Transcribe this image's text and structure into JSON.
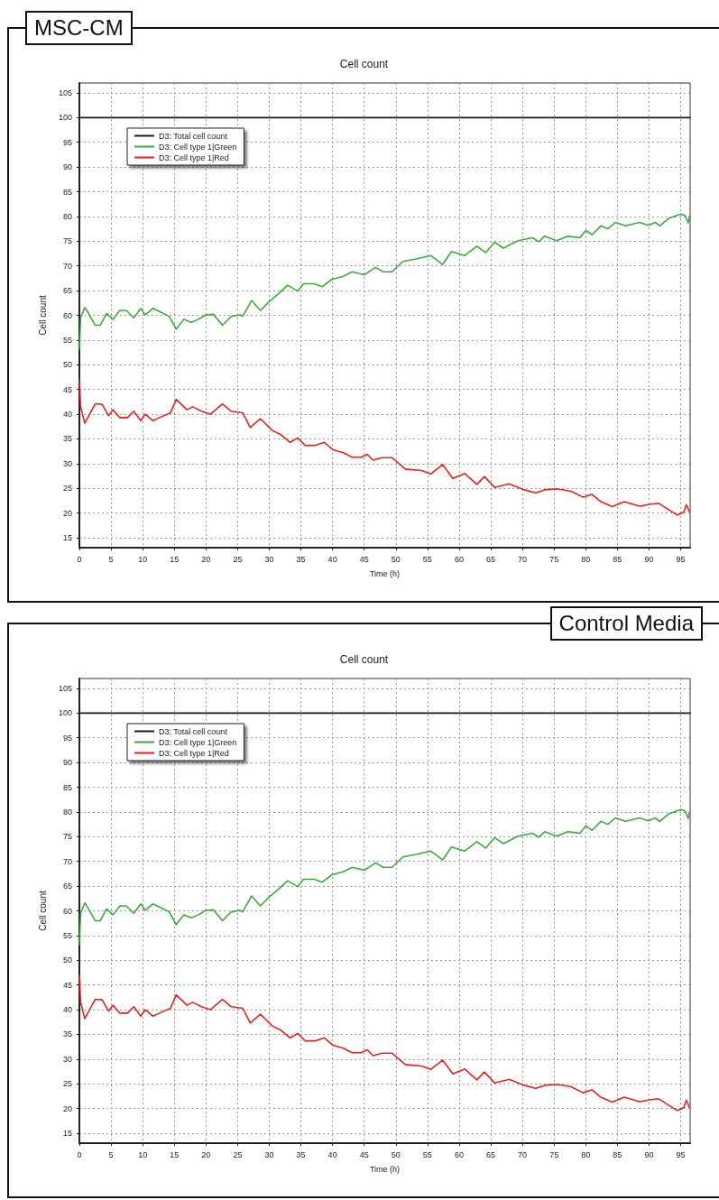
{
  "chart_data": [
    {
      "type": "line",
      "title": "MSC-CM",
      "subtitle": "Cell count",
      "xlabel": "Time (h)",
      "ylabel": "Cell count",
      "xlim": [
        0,
        96.5
      ],
      "xticks": [
        0,
        5,
        10,
        15,
        20,
        25,
        30,
        35,
        40,
        45,
        50,
        55,
        60,
        65,
        70,
        75,
        80,
        85,
        90,
        95
      ],
      "ylim": [
        13,
        107
      ],
      "yticks": [
        15,
        20,
        25,
        30,
        35,
        40,
        45,
        50,
        55,
        60,
        65,
        70,
        75,
        80,
        85,
        90,
        95,
        100,
        105
      ],
      "grid": true,
      "legend": "top left",
      "marker": "none",
      "line_style": "solid",
      "series": [
        {
          "name": "D3: Total cell count",
          "color": "#1a1a1a",
          "x": [
            0,
            96.5
          ],
          "values": [
            100,
            100
          ]
        },
        {
          "name": "D3: Cell type 1|Green",
          "color": "#3daa3d",
          "x": [
            0,
            0.2,
            0.85,
            1.3,
            2.5,
            3.3,
            4.3,
            5.3,
            6.4,
            7.4,
            8.6,
            9.7,
            10.4,
            11.6,
            12.8,
            14.2,
            15.3,
            16.5,
            17.7,
            18.8,
            20,
            21.2,
            22.6,
            24,
            25.4,
            25.8,
            27.2,
            28.6,
            30,
            31.4,
            32.9,
            34.5,
            35.4,
            37.1,
            38.4,
            39.9,
            41.7,
            43.1,
            45,
            46.8,
            48,
            49.4,
            51.1,
            53.2,
            55.5,
            57.4,
            58.8,
            60.9,
            62.8,
            64.2,
            65.6,
            67,
            69.3,
            71.6,
            72.6,
            73.5,
            75.4,
            77.2,
            79.1,
            80,
            81,
            82.4,
            83.5,
            84.7,
            86.3,
            88.5,
            89.9,
            91,
            91.7,
            93.1,
            95,
            95.7,
            96.2,
            96.4
          ],
          "values": [
            53.2,
            59.5,
            61.6,
            60.7,
            58,
            58,
            60.4,
            59.2,
            61,
            61,
            59.5,
            61.4,
            60.1,
            61.4,
            60.7,
            59.8,
            57.2,
            59.2,
            58.6,
            59.2,
            60.1,
            60.2,
            58,
            59.8,
            60.1,
            59.8,
            63,
            61,
            62.8,
            64.3,
            66.1,
            64.9,
            66.4,
            66.4,
            65.8,
            67.3,
            67.9,
            68.8,
            68.2,
            69.7,
            68.8,
            68.8,
            70.9,
            71.4,
            72.1,
            70.3,
            72.9,
            72.1,
            74,
            72.7,
            74.8,
            73.6,
            75.1,
            75.7,
            74.9,
            76,
            75.1,
            76,
            75.7,
            77.2,
            76.3,
            78.1,
            77.5,
            78.8,
            78.1,
            78.8,
            78.2,
            78.8,
            78.1,
            79.6,
            80.5,
            80.2,
            78.7,
            80
          ]
        },
        {
          "name": "D3: Cell type 1|Red",
          "color": "#e8211f",
          "x": [
            0,
            0.2,
            0.85,
            1.5,
            2.5,
            3.6,
            4.6,
            5.3,
            6.4,
            7.6,
            8.6,
            9.7,
            10.4,
            11.6,
            12.8,
            14.4,
            15.3,
            17,
            17.9,
            19.3,
            20.7,
            22.6,
            24,
            25.8,
            27,
            28.6,
            30.5,
            31.9,
            33.3,
            34.5,
            35.7,
            37.3,
            38.7,
            40.1,
            41.7,
            43.1,
            44.5,
            45.5,
            46.4,
            47.8,
            49.4,
            51.5,
            54.1,
            55.5,
            57.4,
            59,
            60.9,
            62.8,
            64,
            65.6,
            67.9,
            70.3,
            72.1,
            73.5,
            75.4,
            77.7,
            79.6,
            81,
            82.4,
            84.2,
            86.1,
            88.5,
            90.3,
            91.5,
            93.1,
            94.5,
            95.5,
            95.9,
            96.4
          ],
          "values": [
            46.9,
            41.5,
            38.2,
            39.7,
            42.1,
            42,
            39.7,
            40.9,
            39.3,
            39.3,
            40.6,
            38.7,
            40,
            38.7,
            39.4,
            40.3,
            43,
            40.9,
            41.5,
            40.6,
            40,
            42.1,
            40.6,
            40.3,
            37.3,
            39.1,
            36.7,
            35.8,
            34.3,
            35.2,
            33.7,
            33.7,
            34.3,
            32.8,
            32.2,
            31.3,
            31.3,
            31.9,
            30.7,
            31.2,
            31.2,
            28.9,
            28.6,
            27.9,
            29.8,
            27,
            28,
            25.8,
            27.4,
            25.2,
            25.9,
            24.7,
            24.1,
            24.7,
            24.9,
            24.4,
            23.2,
            23.8,
            22.3,
            21.3,
            22.3,
            21.4,
            21.8,
            22,
            20.7,
            19.6,
            20.2,
            21.7,
            20.2
          ]
        }
      ]
    },
    {
      "type": "line",
      "title": "Control Media",
      "subtitle": "Cell count",
      "xlabel": "Time (h)",
      "ylabel": "Cell count",
      "xlim": [
        0,
        96.5
      ],
      "xticks": [
        0,
        5,
        10,
        15,
        20,
        25,
        30,
        35,
        40,
        45,
        50,
        55,
        60,
        65,
        70,
        75,
        80,
        85,
        90,
        95
      ],
      "ylim": [
        13,
        107
      ],
      "yticks": [
        15,
        20,
        25,
        30,
        35,
        40,
        45,
        50,
        55,
        60,
        65,
        70,
        75,
        80,
        85,
        90,
        95,
        100,
        105
      ],
      "grid": true,
      "legend": "top left",
      "marker": "none",
      "line_style": "solid",
      "series": [
        {
          "name": "D3: Total cell count",
          "color": "#1a1a1a",
          "x": [
            0,
            96.5
          ],
          "values": [
            100,
            100
          ]
        },
        {
          "name": "D3: Cell type 1|Green",
          "color": "#3daa3d",
          "x": [
            0,
            0.2,
            0.85,
            1.3,
            2.5,
            3.3,
            4.3,
            5.3,
            6.4,
            7.4,
            8.6,
            9.7,
            10.4,
            11.6,
            12.8,
            14.2,
            15.3,
            16.5,
            17.7,
            18.8,
            20,
            21.2,
            22.6,
            24,
            25.4,
            25.8,
            27.2,
            28.6,
            30,
            31.4,
            32.9,
            34.5,
            35.4,
            37.1,
            38.4,
            39.9,
            41.7,
            43.1,
            45,
            46.8,
            48,
            49.4,
            51.1,
            53.2,
            55.5,
            57.4,
            58.8,
            60.9,
            62.8,
            64.2,
            65.6,
            67,
            69.3,
            71.6,
            72.6,
            73.5,
            75.4,
            77.2,
            79.1,
            80,
            81,
            82.4,
            83.5,
            84.7,
            86.3,
            88.5,
            89.9,
            91,
            91.7,
            93.1,
            95,
            95.7,
            96.2,
            96.4
          ],
          "values": [
            53.2,
            59.5,
            61.6,
            60.7,
            58,
            58,
            60.4,
            59.2,
            61,
            61,
            59.5,
            61.4,
            60.1,
            61.4,
            60.7,
            59.8,
            57.2,
            59.2,
            58.6,
            59.2,
            60.1,
            60.2,
            58,
            59.8,
            60.1,
            59.8,
            63,
            61,
            62.8,
            64.3,
            66.1,
            64.9,
            66.4,
            66.4,
            65.8,
            67.3,
            67.9,
            68.8,
            68.2,
            69.7,
            68.8,
            68.8,
            70.9,
            71.4,
            72.1,
            70.3,
            72.9,
            72.1,
            74,
            72.7,
            74.8,
            73.6,
            75.1,
            75.7,
            74.9,
            76,
            75.1,
            76,
            75.7,
            77.2,
            76.3,
            78.1,
            77.5,
            78.8,
            78.1,
            78.8,
            78.2,
            78.8,
            78.1,
            79.6,
            80.5,
            80.2,
            78.7,
            80
          ]
        },
        {
          "name": "D3: Cell type 1|Red",
          "color": "#e8211f",
          "x": [
            0,
            0.2,
            0.85,
            1.5,
            2.5,
            3.6,
            4.6,
            5.3,
            6.4,
            7.6,
            8.6,
            9.7,
            10.4,
            11.6,
            12.8,
            14.4,
            15.3,
            17,
            17.9,
            19.3,
            20.7,
            22.6,
            24,
            25.8,
            27,
            28.6,
            30.5,
            31.9,
            33.3,
            34.5,
            35.7,
            37.3,
            38.7,
            40.1,
            41.7,
            43.1,
            44.5,
            45.5,
            46.4,
            47.8,
            49.4,
            51.5,
            54.1,
            55.5,
            57.4,
            59,
            60.9,
            62.8,
            64,
            65.6,
            67.9,
            70.3,
            72.1,
            73.5,
            75.4,
            77.7,
            79.6,
            81,
            82.4,
            84.2,
            86.1,
            88.5,
            90.3,
            91.5,
            93.1,
            94.5,
            95.5,
            95.9,
            96.4
          ],
          "values": [
            46.9,
            41.5,
            38.2,
            39.7,
            42.1,
            42,
            39.7,
            40.9,
            39.3,
            39.3,
            40.6,
            38.7,
            40,
            38.7,
            39.4,
            40.3,
            43,
            40.9,
            41.5,
            40.6,
            40,
            42.1,
            40.6,
            40.3,
            37.3,
            39.1,
            36.7,
            35.8,
            34.3,
            35.2,
            33.7,
            33.7,
            34.3,
            32.8,
            32.2,
            31.3,
            31.3,
            31.9,
            30.7,
            31.2,
            31.2,
            28.9,
            28.6,
            27.9,
            29.8,
            27,
            28,
            25.8,
            27.4,
            25.2,
            25.9,
            24.7,
            24.1,
            24.7,
            24.9,
            24.4,
            23.2,
            23.8,
            22.3,
            21.3,
            22.3,
            21.4,
            21.8,
            22,
            20.7,
            19.6,
            20.2,
            21.7,
            20.2
          ]
        }
      ]
    }
  ]
}
